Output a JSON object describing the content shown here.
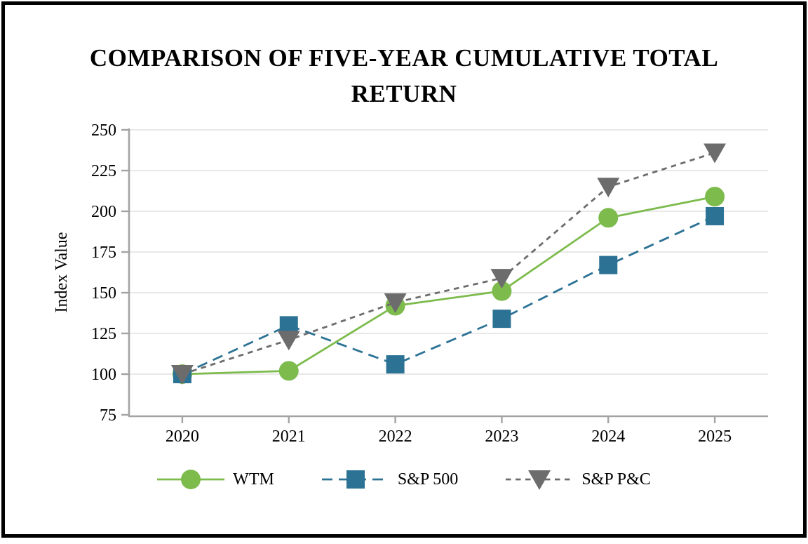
{
  "title_lines": [
    "COMPARISON OF FIVE-YEAR CUMULATIVE TOTAL",
    "RETURN"
  ],
  "chart_data": {
    "type": "line",
    "title": "COMPARISON OF FIVE-YEAR CUMULATIVE TOTAL RETURN",
    "ylabel": "Index Value",
    "xlabel": "",
    "categories": [
      "2020",
      "2021",
      "2022",
      "2023",
      "2024",
      "2025"
    ],
    "ylim": [
      75,
      250
    ],
    "yticks": [
      75,
      100,
      125,
      150,
      175,
      200,
      225,
      250
    ],
    "grid": true,
    "legend_position": "bottom",
    "series": [
      {
        "name": "WTM",
        "marker": "circle",
        "line": "solid",
        "color": "#7CBB4C",
        "values": [
          100,
          102,
          142,
          151,
          196,
          209
        ]
      },
      {
        "name": "S&P 500",
        "marker": "square",
        "line": "dashed",
        "color": "#2C7295",
        "values": [
          100,
          130,
          106,
          134,
          167,
          197
        ]
      },
      {
        "name": "S&P P&C",
        "marker": "triangle-down",
        "line": "dotted",
        "color": "#6C6C6C",
        "values": [
          100,
          121,
          144,
          159,
          215,
          236
        ]
      }
    ]
  },
  "colors": {
    "axis": "#A3A3A3",
    "grid": "#E0E0E0",
    "text": "#000000",
    "frame_border": "#000000",
    "background": "#FFFFFF"
  }
}
